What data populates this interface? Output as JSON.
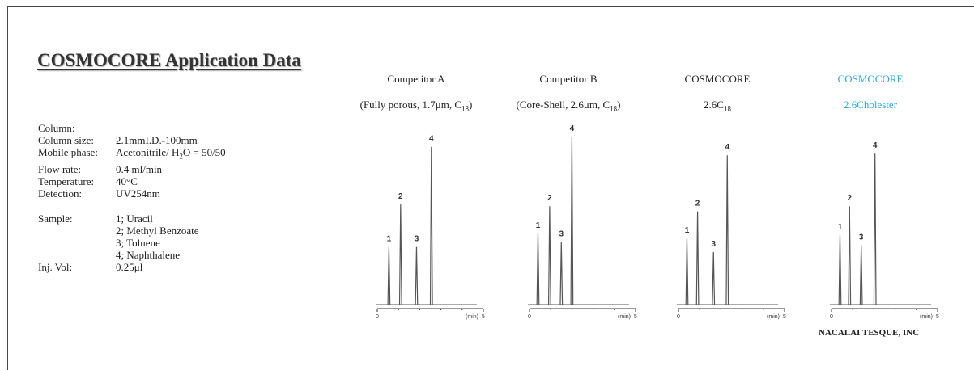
{
  "title": "COSMOCORE Application Data",
  "conditions": {
    "column_label": "Column:",
    "column_size_label": "Column size:",
    "column_size": "2.1mmI.D.-100mm",
    "mobile_phase_label": "Mobile phase:",
    "mobile_phase_a": "Acetonitrile/ H",
    "mobile_phase_sub": "2",
    "mobile_phase_b": "O = 50/50",
    "flow_rate_label": "Flow rate:",
    "flow_rate": "0.4 ml/min",
    "temperature_label": "Temperature:",
    "temperature": "40°C",
    "detection_label": "Detection:",
    "detection": "UV254nm",
    "sample_label": "Sample:",
    "samples": [
      "1; Uracil",
      "2; Methyl Benzoate",
      "3; Toluene",
      "4; Naphthalene"
    ],
    "inj_vol_label": "Inj. Vol:",
    "inj_vol": "0.25μl"
  },
  "panels": [
    {
      "line1": "Competitor A",
      "line2_pre": "(Fully porous, 1.7μm, C",
      "line2_sub": "18",
      "line2_post": ")"
    },
    {
      "line1": "Competitor B",
      "line2_pre": "(Core-Shell, 2.6μm, C",
      "line2_sub": "18",
      "line2_post": ")"
    },
    {
      "line1": "COSMOCORE",
      "line2_pre": "2.6C",
      "line2_sub": "18",
      "line2_post": ""
    },
    {
      "line1": "COSMOCORE",
      "line2_pre": "2.6Cholester",
      "line2_sub": "",
      "line2_post": ""
    }
  ],
  "footer": "NACALAI TESQUE, INC",
  "colors": {
    "accent_cyan": "#2fa9d8",
    "trace": "#555555"
  },
  "chart_data": [
    {
      "type": "line",
      "title": "Competitor A",
      "x_axis_unit": "(min)",
      "xlim": [
        0,
        5
      ],
      "x_ticks": [
        "0",
        "5"
      ],
      "peaks": [
        {
          "label": "1",
          "retention_min": 0.55,
          "height": 0.34
        },
        {
          "label": "2",
          "retention_min": 1.1,
          "height": 0.59
        },
        {
          "label": "3",
          "retention_min": 1.85,
          "height": 0.34
        },
        {
          "label": "4",
          "retention_min": 2.55,
          "height": 0.93
        }
      ]
    },
    {
      "type": "line",
      "title": "Competitor B",
      "x_axis_unit": "(min)",
      "xlim": [
        0,
        5
      ],
      "x_ticks": [
        "0",
        "5"
      ],
      "peaks": [
        {
          "label": "1",
          "retention_min": 0.4,
          "height": 0.42
        },
        {
          "label": "2",
          "retention_min": 0.95,
          "height": 0.58
        },
        {
          "label": "3",
          "retention_min": 1.5,
          "height": 0.37
        },
        {
          "label": "4",
          "retention_min": 2.0,
          "height": 0.99
        }
      ]
    },
    {
      "type": "line",
      "title": "COSMOCORE 2.6C18",
      "x_axis_unit": "(min)",
      "xlim": [
        0,
        5
      ],
      "x_ticks": [
        "0",
        "5"
      ],
      "peaks": [
        {
          "label": "1",
          "retention_min": 0.4,
          "height": 0.39
        },
        {
          "label": "2",
          "retention_min": 0.9,
          "height": 0.55
        },
        {
          "label": "3",
          "retention_min": 1.65,
          "height": 0.31
        },
        {
          "label": "4",
          "retention_min": 2.3,
          "height": 0.88
        }
      ]
    },
    {
      "type": "line",
      "title": "COSMOCORE 2.6Cholester",
      "x_axis_unit": "(min)",
      "xlim": [
        0,
        5
      ],
      "x_ticks": [
        "0",
        "5"
      ],
      "peaks": [
        {
          "label": "1",
          "retention_min": 0.4,
          "height": 0.41
        },
        {
          "label": "2",
          "retention_min": 0.85,
          "height": 0.58
        },
        {
          "label": "3",
          "retention_min": 1.4,
          "height": 0.35
        },
        {
          "label": "4",
          "retention_min": 2.05,
          "height": 0.89
        }
      ]
    }
  ]
}
